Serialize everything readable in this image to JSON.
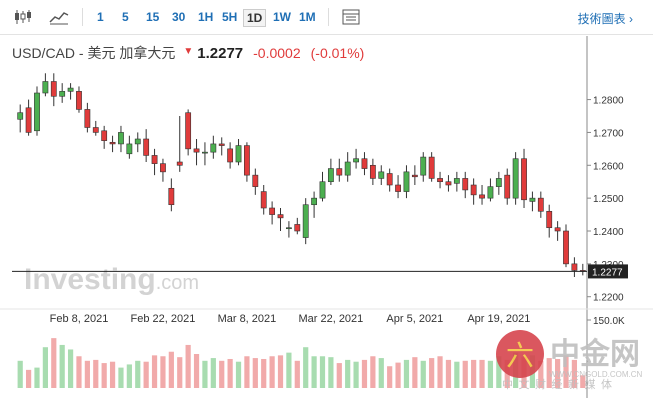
{
  "toolbar": {
    "intervals": [
      "1",
      "5",
      "15",
      "30",
      "1H",
      "5H",
      "1D",
      "1W",
      "1M"
    ],
    "active_interval": "1D",
    "tech_chart_label": "技術圖表"
  },
  "header": {
    "pair": "USD/CAD - 美元 加拿大元",
    "price": "1.2277",
    "change": "-0.0002",
    "change_pct": "(-0.01%)"
  },
  "watermark": {
    "brand_a": "Investing",
    "brand_b": ".com"
  },
  "logo": {
    "name": "中金网",
    "url": "WWW.CNGOLD.COM.CN",
    "tagline": "中 文 财 经 新 媒 体"
  },
  "colors": {
    "up": "#4caf50",
    "down": "#e03b3b",
    "up_vol": "#a8dcb0",
    "down_vol": "#f1aaaa"
  },
  "chart_data": {
    "type": "candlestick",
    "x": [
      "Jan 28 2021",
      "Jan 29 2021",
      "Feb 1 2021",
      "Feb 2 2021",
      "Feb 3 2021",
      "Feb 4 2021",
      "Feb 5 2021",
      "Feb 8 2021",
      "Feb 9 2021",
      "Feb 10 2021",
      "Feb 11 2021",
      "Feb 12 2021",
      "Feb 15 2021",
      "Feb 16 2021",
      "Feb 17 2021",
      "Feb 18 2021",
      "Feb 19 2021",
      "Feb 22 2021",
      "Feb 23 2021",
      "Feb 24 2021",
      "Feb 25 2021",
      "Feb 26 2021",
      "Mar 1 2021",
      "Mar 2 2021",
      "Mar 3 2021",
      "Mar 4 2021",
      "Mar 5 2021",
      "Mar 8 2021",
      "Mar 9 2021",
      "Mar 10 2021",
      "Mar 11 2021",
      "Mar 12 2021",
      "Mar 15 2021",
      "Mar 16 2021",
      "Mar 17 2021",
      "Mar 18 2021",
      "Mar 19 2021",
      "Mar 22 2021",
      "Mar 23 2021",
      "Mar 24 2021",
      "Mar 25 2021",
      "Mar 26 2021",
      "Mar 29 2021",
      "Mar 30 2021",
      "Mar 31 2021",
      "Apr 1 2021",
      "Apr 2 2021",
      "Apr 5 2021",
      "Apr 6 2021",
      "Apr 7 2021",
      "Apr 8 2021",
      "Apr 9 2021",
      "Apr 12 2021",
      "Apr 13 2021",
      "Apr 14 2021",
      "Apr 15 2021",
      "Apr 16 2021",
      "Apr 19 2021",
      "Apr 20 2021",
      "Apr 21 2021",
      "Apr 22 2021",
      "Apr 23 2021",
      "Apr 26 2021",
      "Apr 27 2021",
      "Apr 28 2021",
      "Apr 29 2021",
      "Apr 30 2021",
      "May 3 2021"
    ],
    "open": [
      1.274,
      1.2775,
      1.2705,
      1.282,
      1.2855,
      1.281,
      1.2825,
      1.2825,
      1.277,
      1.2715,
      1.2705,
      1.267,
      1.2665,
      1.2635,
      1.2665,
      1.268,
      1.263,
      1.2605,
      1.253,
      1.261,
      1.276,
      1.265,
      1.264,
      1.264,
      1.2665,
      1.265,
      1.261,
      1.266,
      1.257,
      1.252,
      1.247,
      1.245,
      1.241,
      1.242,
      1.238,
      1.248,
      1.25,
      1.255,
      1.259,
      1.257,
      1.261,
      1.262,
      1.26,
      1.256,
      1.2575,
      1.254,
      1.252,
      1.257,
      1.257,
      1.2625,
      1.256,
      1.255,
      1.2545,
      1.256,
      1.254,
      1.251,
      1.25,
      1.2535,
      1.257,
      1.25,
      1.262,
      1.249,
      1.25,
      1.246,
      1.241,
      1.24,
      1.23,
      1.228
    ],
    "close": [
      1.276,
      1.27,
      1.282,
      1.2855,
      1.281,
      1.2825,
      1.2835,
      1.277,
      1.2715,
      1.27,
      1.2675,
      1.2665,
      1.27,
      1.2665,
      1.268,
      1.263,
      1.2605,
      1.258,
      1.248,
      1.26,
      1.265,
      1.264,
      1.264,
      1.2665,
      1.266,
      1.261,
      1.266,
      1.257,
      1.2535,
      1.247,
      1.245,
      1.244,
      1.241,
      1.24,
      1.248,
      1.25,
      1.255,
      1.259,
      1.257,
      1.261,
      1.262,
      1.259,
      1.256,
      1.258,
      1.254,
      1.252,
      1.258,
      1.2565,
      1.2625,
      1.256,
      1.255,
      1.254,
      1.256,
      1.2525,
      1.251,
      1.25,
      1.2535,
      1.256,
      1.25,
      1.262,
      1.2495,
      1.25,
      1.246,
      1.241,
      1.24,
      1.23,
      1.228,
      1.2277
    ],
    "high": [
      1.2785,
      1.28,
      1.284,
      1.288,
      1.288,
      1.285,
      1.285,
      1.284,
      1.279,
      1.2735,
      1.272,
      1.269,
      1.272,
      1.269,
      1.27,
      1.271,
      1.265,
      1.262,
      1.256,
      1.275,
      1.277,
      1.268,
      1.267,
      1.269,
      1.2685,
      1.267,
      1.268,
      1.267,
      1.259,
      1.254,
      1.249,
      1.247,
      1.243,
      1.244,
      1.25,
      1.252,
      1.258,
      1.262,
      1.262,
      1.264,
      1.265,
      1.264,
      1.262,
      1.26,
      1.259,
      1.257,
      1.26,
      1.26,
      1.264,
      1.264,
      1.258,
      1.257,
      1.258,
      1.258,
      1.256,
      1.254,
      1.256,
      1.258,
      1.259,
      1.264,
      1.265,
      1.252,
      1.252,
      1.248,
      1.243,
      1.242,
      1.232,
      1.23
    ],
    "low": [
      1.27,
      1.269,
      1.269,
      1.281,
      1.278,
      1.279,
      1.28,
      1.276,
      1.27,
      1.269,
      1.265,
      1.264,
      1.264,
      1.262,
      1.264,
      1.261,
      1.257,
      1.255,
      1.246,
      1.258,
      1.263,
      1.26,
      1.26,
      1.262,
      1.263,
      1.259,
      1.26,
      1.255,
      1.251,
      1.245,
      1.242,
      1.24,
      1.238,
      1.239,
      1.236,
      1.244,
      1.249,
      1.254,
      1.255,
      1.255,
      1.259,
      1.257,
      1.254,
      1.254,
      1.252,
      1.25,
      1.25,
      1.254,
      1.255,
      1.255,
      1.253,
      1.252,
      1.252,
      1.25,
      1.248,
      1.248,
      1.249,
      1.251,
      1.248,
      1.248,
      1.247,
      1.246,
      1.244,
      1.238,
      1.237,
      1.229,
      1.226,
      1.2265
    ],
    "volume": [
      60,
      40,
      45,
      90,
      110,
      95,
      85,
      70,
      60,
      62,
      55,
      58,
      45,
      52,
      60,
      58,
      72,
      70,
      80,
      68,
      95,
      75,
      60,
      66,
      60,
      64,
      58,
      70,
      66,
      64,
      70,
      72,
      78,
      60,
      90,
      70,
      70,
      68,
      55,
      62,
      58,
      62,
      70,
      66,
      48,
      56,
      62,
      68,
      60,
      66,
      70,
      62,
      58,
      60,
      62,
      62,
      60,
      70,
      62,
      78,
      68,
      72,
      60,
      66,
      64,
      72,
      62,
      28
    ],
    "y_ticks": [
      "1.2800",
      "1.2700",
      "1.2600",
      "1.2500",
      "1.2400",
      "1.2300",
      "1.2200"
    ],
    "ylim": [
      1.219,
      1.289
    ],
    "current_price_label": "1.2277",
    "x_ticks": [
      {
        "label": "Feb 8, 2021",
        "x": "Feb 8 2021"
      },
      {
        "label": "Feb 22, 2021",
        "x": "Feb 22 2021"
      },
      {
        "label": "Mar 8, 2021",
        "x": "Mar 8 2021"
      },
      {
        "label": "Mar 22, 2021",
        "x": "Mar 22 2021"
      },
      {
        "label": "Apr 5, 2021",
        "x": "Apr 5 2021"
      },
      {
        "label": "Apr 19, 2021",
        "x": "Apr 19 2021"
      }
    ],
    "volume_tick": "150.0K",
    "volume_max": 150
  }
}
